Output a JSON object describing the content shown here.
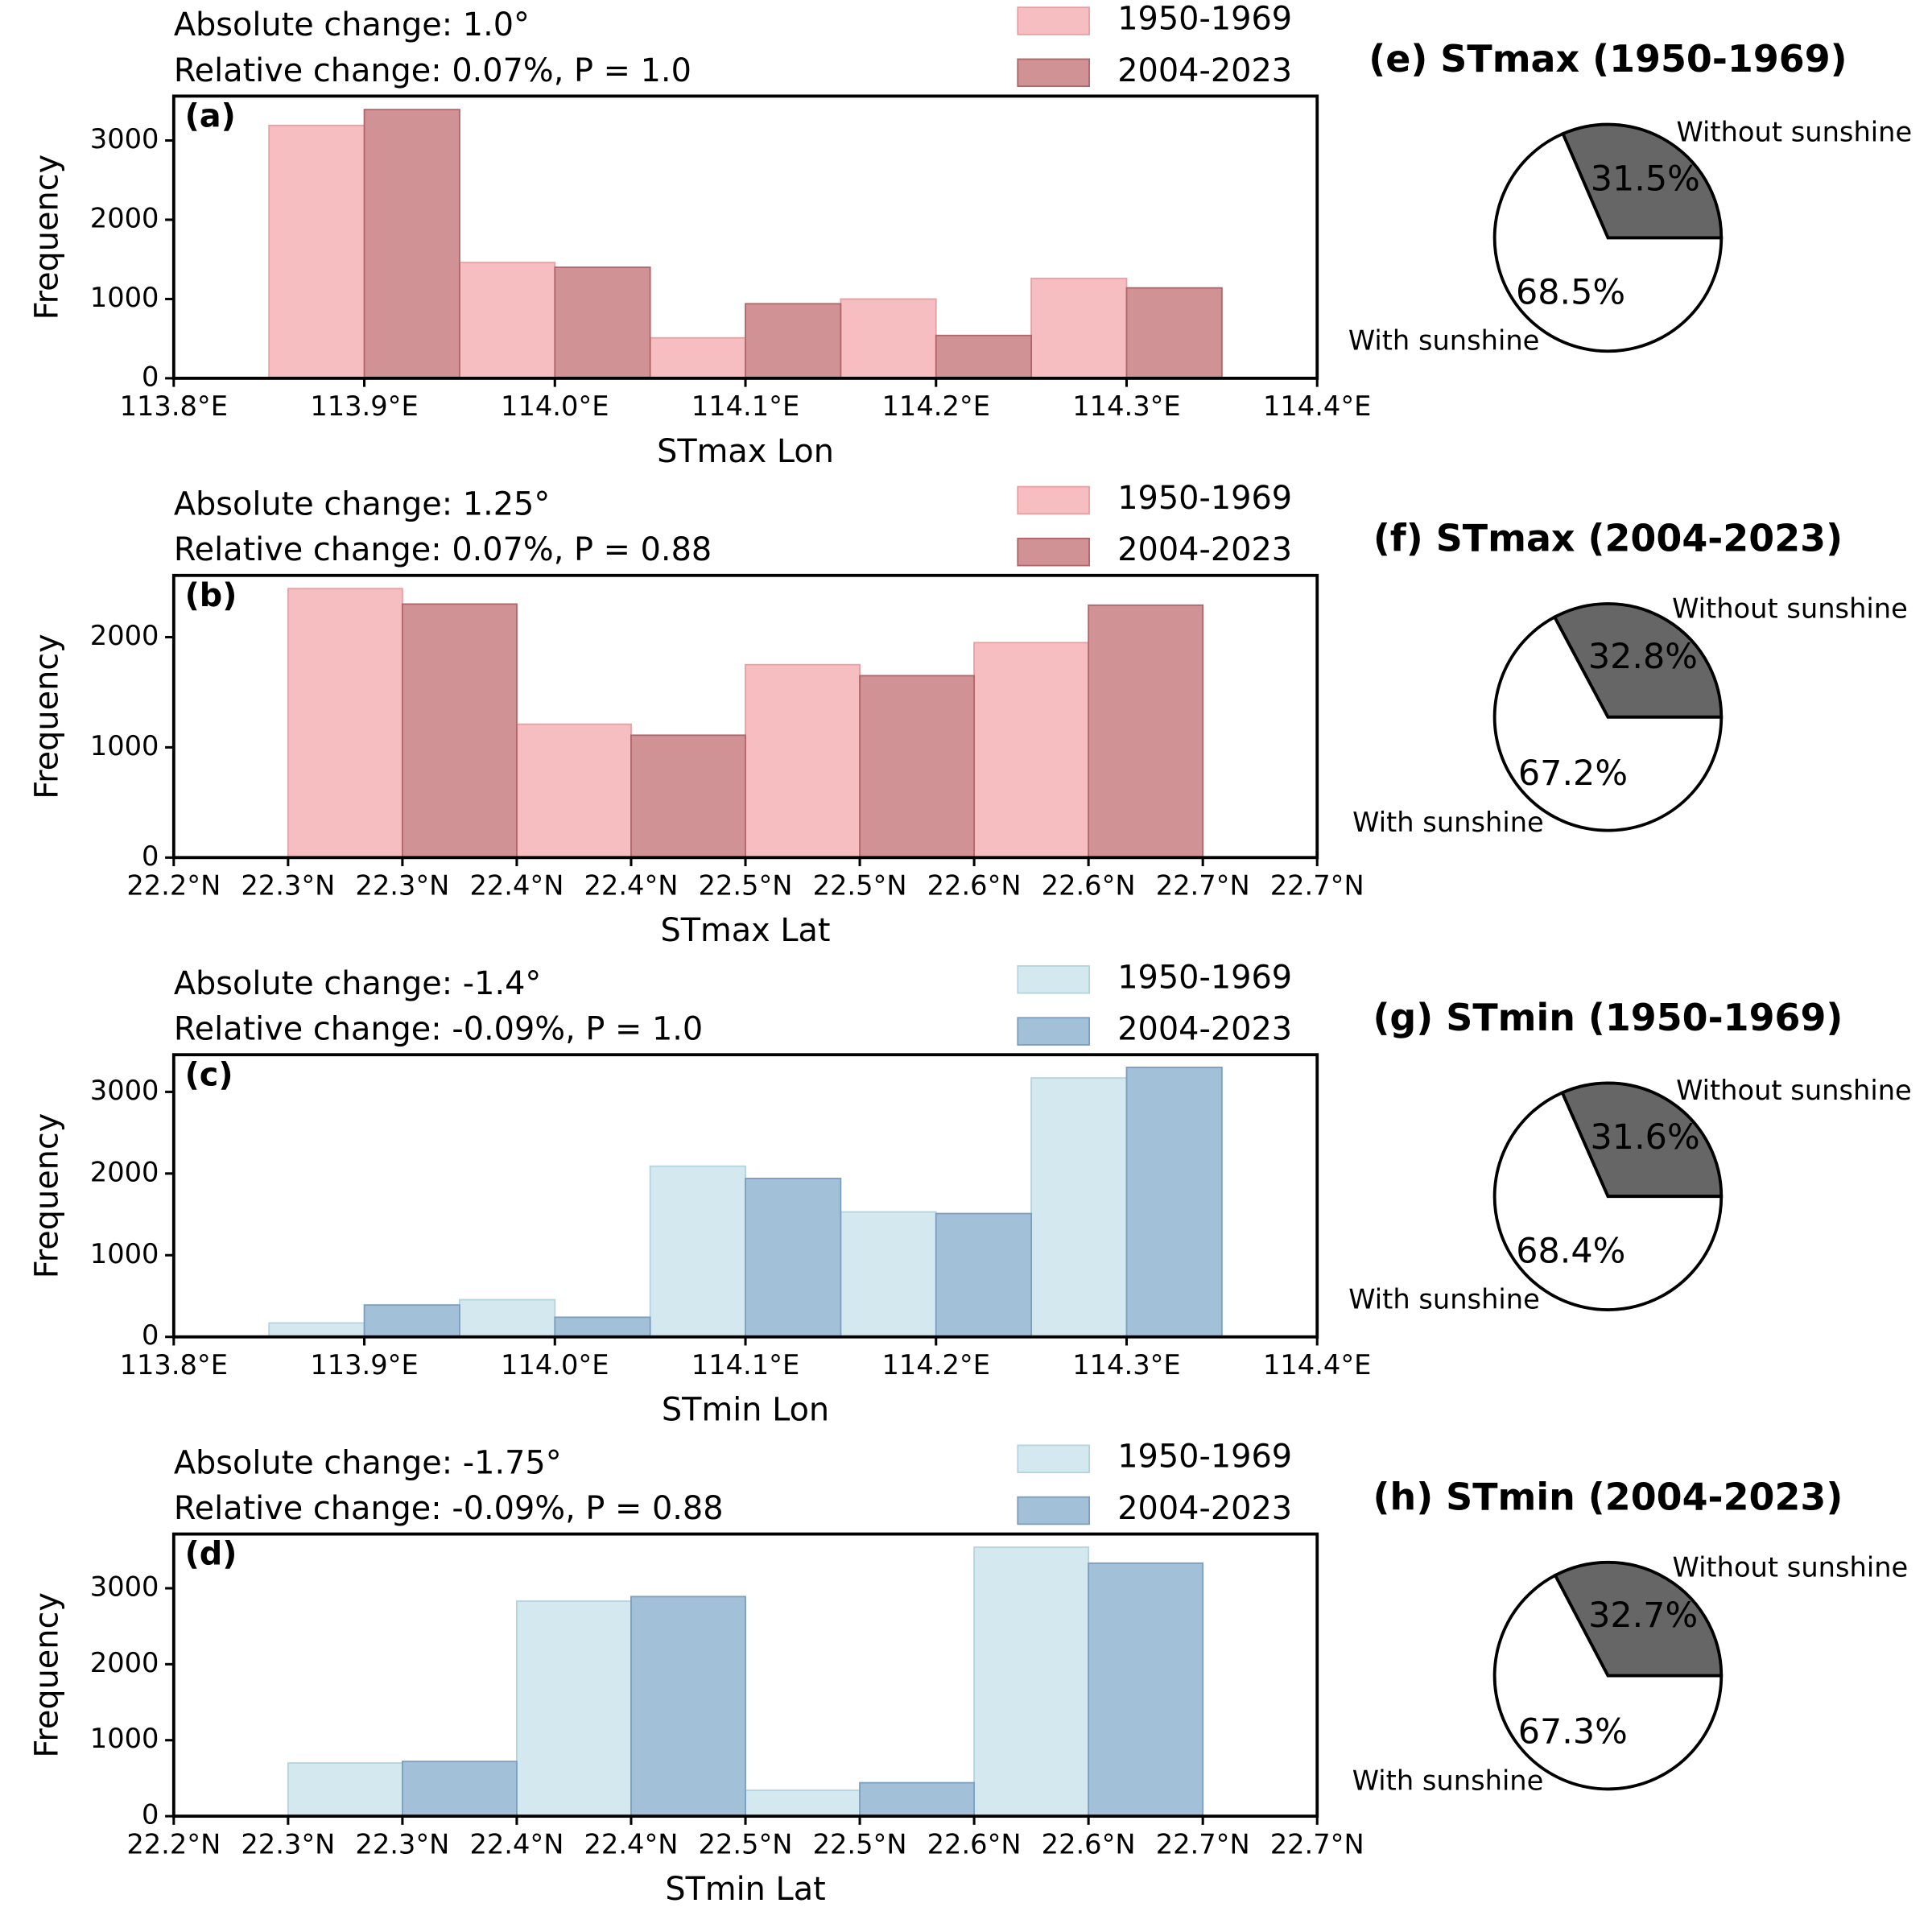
{
  "chart_data": [
    {
      "type": "bar",
      "panel_label": "(a)",
      "annotations": [
        "Absolute change: 1.0°",
        "Relative change: 0.07%, P = 1.0"
      ],
      "xlabel": "STmax Lon",
      "ylabel": "Frequency",
      "x": [
        113.9,
        114.0,
        114.1,
        114.2,
        114.3
      ],
      "series": [
        {
          "name": "1950-1969",
          "color": "#f6bec1",
          "edgecolor": "#e8a0a4",
          "values": [
            3190,
            1460,
            510,
            1000,
            1260
          ]
        },
        {
          "name": "2004-2023",
          "color": "#d09294",
          "edgecolor": "#b0666a",
          "values": [
            3390,
            1400,
            940,
            540,
            1140
          ]
        }
      ],
      "xlim": [
        113.8,
        114.4
      ],
      "xticks": [
        {
          "value": 113.8,
          "label": "113.8°E"
        },
        {
          "value": 113.9,
          "label": "113.9°E"
        },
        {
          "value": 114.0,
          "label": "114.0°E"
        },
        {
          "value": 114.1,
          "label": "114.1°E"
        },
        {
          "value": 114.2,
          "label": "114.2°E"
        },
        {
          "value": 114.3,
          "label": "114.3°E"
        },
        {
          "value": 114.4,
          "label": "114.4°E"
        }
      ],
      "ylim": [
        0,
        3560
      ],
      "yticks": [
        0,
        1000,
        2000,
        3000
      ]
    },
    {
      "type": "bar",
      "panel_label": "(b)",
      "annotations": [
        "Absolute change: 1.25°",
        "Relative change: 0.07%, P = 0.88"
      ],
      "xlabel": "STmax Lat",
      "ylabel": "Frequency",
      "x": [
        22.3,
        22.4,
        22.5,
        22.6
      ],
      "series": [
        {
          "name": "1950-1969",
          "color": "#f6bec1",
          "edgecolor": "#e8a0a4",
          "values": [
            2440,
            1210,
            1750,
            1950
          ]
        },
        {
          "name": "2004-2023",
          "color": "#d09294",
          "edgecolor": "#b0666a",
          "values": [
            2300,
            1110,
            1650,
            2290
          ]
        }
      ],
      "xlim": [
        22.2,
        22.7
      ],
      "xticks": [
        {
          "value": 22.2,
          "label": "22.2°N"
        },
        {
          "value": 22.25,
          "label": "22.3°N"
        },
        {
          "value": 22.3,
          "label": "22.3°N"
        },
        {
          "value": 22.35,
          "label": "22.4°N"
        },
        {
          "value": 22.4,
          "label": "22.4°N"
        },
        {
          "value": 22.45,
          "label": "22.5°N"
        },
        {
          "value": 22.5,
          "label": "22.5°N"
        },
        {
          "value": 22.55,
          "label": "22.6°N"
        },
        {
          "value": 22.6,
          "label": "22.6°N"
        },
        {
          "value": 22.65,
          "label": "22.7°N"
        },
        {
          "value": 22.7,
          "label": "22.7°N"
        }
      ],
      "ylim": [
        0,
        2560
      ],
      "yticks": [
        0,
        1000,
        2000
      ]
    },
    {
      "type": "bar",
      "panel_label": "(c)",
      "annotations": [
        "Absolute change: -1.4°",
        "Relative change: -0.09%, P = 1.0"
      ],
      "xlabel": "STmin Lon",
      "ylabel": "Frequency",
      "x": [
        113.9,
        114.0,
        114.1,
        114.2,
        114.3
      ],
      "series": [
        {
          "name": "1950-1969",
          "color": "#d3e9ef",
          "edgecolor": "#b4d4de",
          "values": [
            170,
            455,
            2090,
            1530,
            3170
          ]
        },
        {
          "name": "2004-2023",
          "color": "#a3c0d9",
          "edgecolor": "#7c9fbf",
          "values": [
            390,
            240,
            1940,
            1510,
            3300
          ]
        }
      ],
      "xlim": [
        113.8,
        114.4
      ],
      "xticks": [
        {
          "value": 113.8,
          "label": "113.8°E"
        },
        {
          "value": 113.9,
          "label": "113.9°E"
        },
        {
          "value": 114.0,
          "label": "114.0°E"
        },
        {
          "value": 114.1,
          "label": "114.1°E"
        },
        {
          "value": 114.2,
          "label": "114.2°E"
        },
        {
          "value": 114.3,
          "label": "114.3°E"
        },
        {
          "value": 114.4,
          "label": "114.4°E"
        }
      ],
      "ylim": [
        0,
        3455
      ],
      "yticks": [
        0,
        1000,
        2000,
        3000
      ]
    },
    {
      "type": "bar",
      "panel_label": "(d)",
      "annotations": [
        "Absolute change: -1.75°",
        "Relative change: -0.09%, P = 0.88"
      ],
      "xlabel": "STmin Lat",
      "ylabel": "Frequency",
      "x": [
        22.3,
        22.4,
        22.5,
        22.6
      ],
      "series": [
        {
          "name": "1950-1969",
          "color": "#d3e9ef",
          "edgecolor": "#b4d4de",
          "values": [
            700,
            2830,
            340,
            3540
          ]
        },
        {
          "name": "2004-2023",
          "color": "#a3c0d9",
          "edgecolor": "#7c9fbf",
          "values": [
            720,
            2890,
            440,
            3330
          ]
        }
      ],
      "xlim": [
        22.2,
        22.7
      ],
      "xticks": [
        {
          "value": 22.2,
          "label": "22.2°N"
        },
        {
          "value": 22.25,
          "label": "22.3°N"
        },
        {
          "value": 22.3,
          "label": "22.3°N"
        },
        {
          "value": 22.35,
          "label": "22.4°N"
        },
        {
          "value": 22.4,
          "label": "22.4°N"
        },
        {
          "value": 22.45,
          "label": "22.5°N"
        },
        {
          "value": 22.5,
          "label": "22.5°N"
        },
        {
          "value": 22.55,
          "label": "22.6°N"
        },
        {
          "value": 22.6,
          "label": "22.6°N"
        },
        {
          "value": 22.65,
          "label": "22.7°N"
        },
        {
          "value": 22.7,
          "label": "22.7°N"
        }
      ],
      "ylim": [
        0,
        3714
      ],
      "yticks": [
        0,
        1000,
        2000,
        3000
      ]
    },
    {
      "type": "pie",
      "title": "(e) STmax (1950-1969)",
      "categories": [
        "Without sunshine",
        "With sunshine"
      ],
      "values": [
        31.5,
        68.5
      ],
      "value_labels": [
        "31.5%",
        "68.5%"
      ],
      "colors": [
        "#666666",
        "#ffffff"
      ]
    },
    {
      "type": "pie",
      "title": "(f) STmax (2004-2023)",
      "categories": [
        "Without sunshine",
        "With sunshine"
      ],
      "values": [
        32.8,
        67.2
      ],
      "value_labels": [
        "32.8%",
        "67.2%"
      ],
      "colors": [
        "#666666",
        "#ffffff"
      ]
    },
    {
      "type": "pie",
      "title": "(g) STmin (1950-1969)",
      "categories": [
        "Without sunshine",
        "With sunshine"
      ],
      "values": [
        31.6,
        68.4
      ],
      "value_labels": [
        "31.6%",
        "68.4%"
      ],
      "colors": [
        "#666666",
        "#ffffff"
      ]
    },
    {
      "type": "pie",
      "title": "(h) STmin (2004-2023)",
      "categories": [
        "Without sunshine",
        "With sunshine"
      ],
      "values": [
        32.7,
        67.3
      ],
      "value_labels": [
        "32.7%",
        "67.3%"
      ],
      "colors": [
        "#666666",
        "#ffffff"
      ]
    }
  ]
}
